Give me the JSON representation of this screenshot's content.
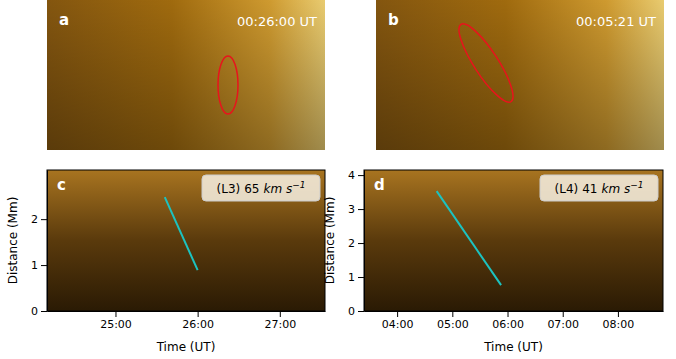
{
  "chart_data": [
    {
      "type": "image",
      "panel_label": "a",
      "timestamp": "00:26:00 UT"
    },
    {
      "type": "image",
      "panel_label": "b",
      "timestamp": "00:05:21 UT"
    },
    {
      "type": "line",
      "panel_label": "c",
      "x_label": "Time (UT)",
      "y_label": "Distance (Mm)",
      "xlim": [
        1450,
        1653
      ],
      "ylim": [
        0,
        3.07
      ],
      "xticks": [
        {
          "value": 1500,
          "label": "25:00"
        },
        {
          "value": 1560,
          "label": "26:00"
        },
        {
          "value": 1620,
          "label": "27:00"
        }
      ],
      "yticks": [
        0,
        1,
        2
      ],
      "speed_unit": "km s",
      "speed_unit_exponent": "−1",
      "series": [
        {
          "name": "(L3)",
          "color": "#1cc2c0",
          "x": [
            1536,
            1560
          ],
          "values": [
            2.48,
            0.89
          ],
          "speed": 65
        }
      ]
    },
    {
      "type": "line",
      "panel_label": "d",
      "x_label": "Time (UT)",
      "y_label": "Distance (Mm)",
      "xlim": [
        204,
        529
      ],
      "ylim": [
        0,
        4.15
      ],
      "xticks": [
        {
          "value": 240,
          "label": "04:00"
        },
        {
          "value": 300,
          "label": "05:00"
        },
        {
          "value": 360,
          "label": "06:00"
        },
        {
          "value": 420,
          "label": "07:00"
        },
        {
          "value": 480,
          "label": "08:00"
        }
      ],
      "yticks": [
        0,
        1,
        2,
        3,
        4
      ],
      "speed_unit": "km s",
      "speed_unit_exponent": "−1",
      "series": [
        {
          "name": "(L4)",
          "color": "#1cc2c0",
          "x": [
            283,
            353
          ],
          "values": [
            3.53,
            0.76
          ],
          "speed": 41
        }
      ]
    }
  ]
}
